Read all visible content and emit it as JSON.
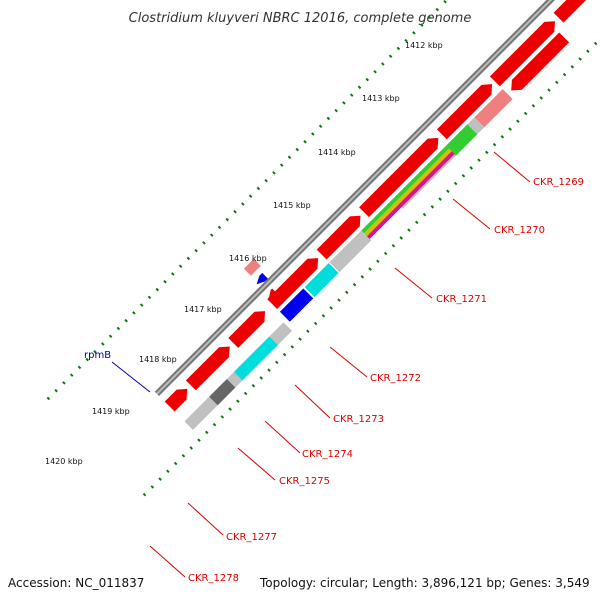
{
  "header": {
    "title": "Clostridium kluyveri NBRC 12016, complete genome"
  },
  "footer": {
    "accession": "Accession: NC_011837",
    "summary": "Topology: circular; Length: 3,896,121 bp; Genes: 3,549"
  },
  "ruler": {
    "labels": [
      "1412 kbp",
      "1413 kbp",
      "1414 kbp",
      "1415 kbp",
      "1416 kbp",
      "1417 kbp",
      "1418 kbp",
      "1419 kbp",
      "1420 kbp"
    ]
  },
  "genes": {
    "labels": [
      "CKR_1269",
      "CKR_1270",
      "CKR_1271",
      "CKR_1272",
      "CKR_1273",
      "CKR_1274",
      "CKR_1275",
      "CKR_1277",
      "CKR_1278"
    ]
  },
  "rna": {
    "label": "rpmB"
  },
  "colors": {
    "cds": "#ee0000",
    "cds_light": "#f08080",
    "neutral": "#c0c0c0",
    "green": "#33cc33",
    "cyan": "#00dddd",
    "blue": "#0000ee",
    "dark_gray": "#666666",
    "tick": "#117711",
    "label": "#e00000",
    "rna_label": "#000099"
  }
}
